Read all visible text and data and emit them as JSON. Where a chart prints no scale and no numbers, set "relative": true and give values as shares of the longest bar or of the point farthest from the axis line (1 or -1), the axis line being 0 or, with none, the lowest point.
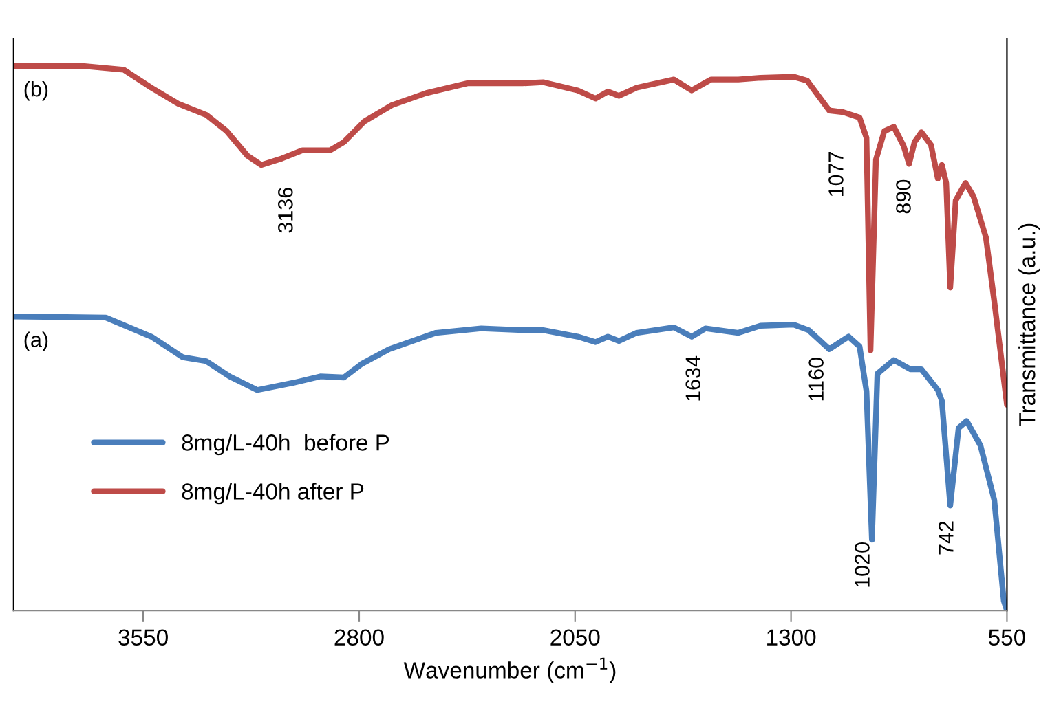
{
  "chart_data": {
    "type": "line",
    "relative": true,
    "xlabel": "Wavenumber (cm$^{−1}$)",
    "ylabel": "Transmittance (a.u.)",
    "xlim": [
      4000,
      550
    ],
    "xticks": [
      3550,
      2800,
      2050,
      1300,
      550
    ],
    "grid": false,
    "legend": "bottom left",
    "marker": "none",
    "line_style": "solid",
    "tick_labels": "x",
    "series": [
      {
        "name": "8mg/L-40h  before P",
        "color": "#4a7ebb",
        "x": [
          4000,
          3680,
          3522,
          3412,
          3331,
          3250,
          3154,
          3030,
          2935,
          2853,
          2791,
          2696,
          2533,
          2376,
          2233,
          2161,
          2041,
          1979,
          1936,
          1898,
          1836,
          1707,
          1645,
          1597,
          1483,
          1406,
          1291,
          1239,
          1167,
          1100,
          1062,
          1038,
          1019,
          1000,
          943,
          885,
          847,
          790,
          776,
          747,
          718,
          690,
          642,
          594,
          561,
          550
        ],
        "values": [
          0.54,
          0.538,
          0.503,
          0.465,
          0.458,
          0.43,
          0.405,
          0.418,
          0.43,
          0.428,
          0.453,
          0.48,
          0.51,
          0.518,
          0.515,
          0.515,
          0.503,
          0.493,
          0.503,
          0.495,
          0.51,
          0.52,
          0.503,
          0.518,
          0.51,
          0.523,
          0.525,
          0.515,
          0.48,
          0.503,
          0.485,
          0.403,
          0.13,
          0.435,
          0.46,
          0.443,
          0.443,
          0.405,
          0.385,
          0.193,
          0.335,
          0.348,
          0.303,
          0.203,
          0.018,
          0
        ]
      },
      {
        "name": "8mg/L-40h after P",
        "color": "#be4b48",
        "x": [
          4000,
          3761,
          3618,
          3522,
          3427,
          3331,
          3260,
          3188,
          3140,
          3068,
          2997,
          2901,
          2853,
          2782,
          2686,
          2567,
          2424,
          2233,
          2161,
          2041,
          1979,
          1936,
          1898,
          1836,
          1707,
          1645,
          1578,
          1483,
          1406,
          1291,
          1244,
          1167,
          1119,
          1062,
          1038,
          1024,
          1005,
          976,
          943,
          909,
          890,
          871,
          847,
          814,
          790,
          776,
          761,
          747,
          728,
          694,
          666,
          623,
          594,
          550
        ],
        "values": [
          1,
          1,
          0.993,
          0.96,
          0.93,
          0.91,
          0.88,
          0.835,
          0.818,
          0.83,
          0.845,
          0.845,
          0.86,
          0.898,
          0.928,
          0.95,
          0.968,
          0.968,
          0.97,
          0.955,
          0.94,
          0.953,
          0.945,
          0.96,
          0.975,
          0.955,
          0.975,
          0.975,
          0.978,
          0.98,
          0.973,
          0.918,
          0.915,
          0.905,
          0.868,
          0.478,
          0.828,
          0.88,
          0.888,
          0.853,
          0.82,
          0.86,
          0.878,
          0.855,
          0.793,
          0.818,
          0.785,
          0.593,
          0.753,
          0.785,
          0.76,
          0.685,
          0.568,
          0.378
        ]
      }
    ],
    "annotations": [
      {
        "text": "(b)",
        "x": 4000,
        "y": 1
      },
      {
        "text": "(a)",
        "x": 4000,
        "y": 0.54
      },
      {
        "text": "3136",
        "x": 3136,
        "y": 0.82
      },
      {
        "text": "1077",
        "x": 1077,
        "y": 0.9
      },
      {
        "text": "890",
        "x": 890,
        "y": 0.82
      },
      {
        "text": "1634",
        "x": 1634,
        "y": 0.5
      },
      {
        "text": "1160",
        "x": 1160,
        "y": 0.48
      },
      {
        "text": "1020",
        "x": 1020,
        "y": 0.13
      },
      {
        "text": "742",
        "x": 742,
        "y": 0.19
      }
    ]
  }
}
